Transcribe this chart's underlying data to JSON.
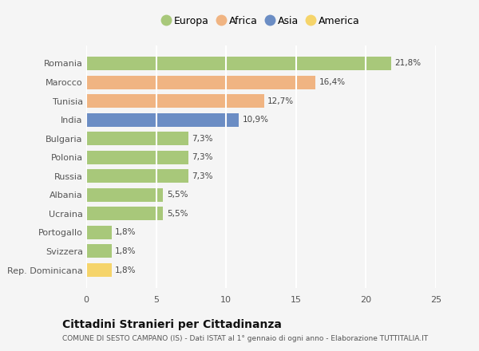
{
  "categories": [
    "Romania",
    "Marocco",
    "Tunisia",
    "India",
    "Bulgaria",
    "Polonia",
    "Russia",
    "Albania",
    "Ucraina",
    "Portogallo",
    "Svizzera",
    "Rep. Dominicana"
  ],
  "values": [
    21.8,
    16.4,
    12.7,
    10.9,
    7.3,
    7.3,
    7.3,
    5.5,
    5.5,
    1.8,
    1.8,
    1.8
  ],
  "labels": [
    "21,8%",
    "16,4%",
    "12,7%",
    "10,9%",
    "7,3%",
    "7,3%",
    "7,3%",
    "5,5%",
    "5,5%",
    "1,8%",
    "1,8%",
    "1,8%"
  ],
  "continents": [
    "Europa",
    "Africa",
    "Africa",
    "Asia",
    "Europa",
    "Europa",
    "Europa",
    "Europa",
    "Europa",
    "Europa",
    "Europa",
    "America"
  ],
  "colors": {
    "Europa": "#a8c87a",
    "Africa": "#f0b482",
    "Asia": "#6b8dc4",
    "America": "#f5d46a"
  },
  "legend_order": [
    "Europa",
    "Africa",
    "Asia",
    "America"
  ],
  "xlim": [
    0,
    25
  ],
  "xticks": [
    0,
    5,
    10,
    15,
    20,
    25
  ],
  "title": "Cittadini Stranieri per Cittadinanza",
  "subtitle": "COMUNE DI SESTO CAMPANO (IS) - Dati ISTAT al 1° gennaio di ogni anno - Elaborazione TUTTITALIA.IT",
  "background_color": "#f5f5f5",
  "grid_color": "#ffffff",
  "bar_height": 0.72
}
